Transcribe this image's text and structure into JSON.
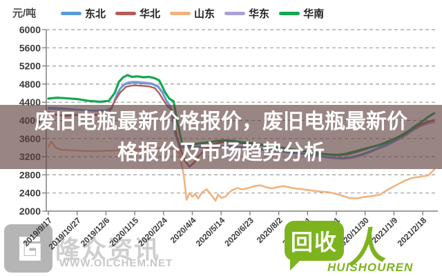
{
  "headline": {
    "line1": "废旧电瓶最新价格报价，废旧电瓶最新价",
    "line2": "格报价及市场趋势分析"
  },
  "unit_label": "元/吨",
  "watermarks": {
    "left": {
      "logo_name": "隆众资讯",
      "url_text": "WWW.OILCHEM.NET",
      "color": "#c6c6c6"
    },
    "right": {
      "bubble_text": "回收",
      "person_glyph": "人",
      "brand_text": "HUISHOUREN",
      "color": "#7db41e"
    }
  },
  "chart_data": {
    "type": "line",
    "title": "",
    "ylabel": "元/吨",
    "ylim": [
      2000,
      6000
    ],
    "yticks": [
      2000,
      2400,
      2800,
      3200,
      3600,
      4000,
      4400,
      4800,
      5200,
      5600,
      6000
    ],
    "grid": "dashed-horizontal",
    "legend_position": "top",
    "xticklabels": [
      "2019/9/17",
      "2019/10/27",
      "2019/12/6",
      "2020/1/15",
      "2020/2/24",
      "2020/4/4",
      "2020/5/14",
      "2020/6/23",
      "2020/8/2",
      "2020/9/11",
      "2020/10/21",
      "2020/11/30",
      "2021/1/9",
      "2021/2/18"
    ],
    "x_unit": "tick-index (0 = 2019/9/17, 13 = 2021/2/18)",
    "draw_order": [
      3,
      0,
      1,
      2,
      4
    ],
    "series": [
      {
        "name": "东北",
        "color": "#5b9bd5",
        "width": 2.4,
        "points": [
          [
            0,
            4280
          ],
          [
            0.4,
            4270
          ],
          [
            0.8,
            4250
          ],
          [
            1.2,
            4230
          ],
          [
            1.6,
            4210
          ],
          [
            2.0,
            4220
          ],
          [
            2.2,
            4260
          ],
          [
            2.35,
            4520
          ],
          [
            2.5,
            4700
          ],
          [
            2.65,
            4790
          ],
          [
            2.8,
            4820
          ],
          [
            3.0,
            4830
          ],
          [
            3.2,
            4820
          ],
          [
            3.4,
            4810
          ],
          [
            3.6,
            4800
          ],
          [
            3.8,
            4740
          ],
          [
            3.95,
            4620
          ],
          [
            4.1,
            4420
          ],
          [
            4.25,
            4280
          ],
          [
            4.4,
            3700
          ],
          [
            4.55,
            3430
          ],
          [
            4.8,
            3410
          ],
          [
            5.1,
            3420
          ],
          [
            5.4,
            3430
          ],
          [
            5.7,
            3420
          ],
          [
            6.0,
            3430
          ],
          [
            6.3,
            3440
          ],
          [
            6.6,
            3420
          ],
          [
            6.9,
            3400
          ],
          [
            7.2,
            3380
          ],
          [
            7.5,
            3360
          ],
          [
            7.8,
            3340
          ],
          [
            8.1,
            3320
          ],
          [
            8.4,
            3300
          ],
          [
            8.7,
            3280
          ],
          [
            9.0,
            3260
          ],
          [
            9.3,
            3230
          ],
          [
            9.6,
            3200
          ],
          [
            9.9,
            3180
          ],
          [
            10.2,
            3170
          ],
          [
            10.5,
            3190
          ],
          [
            10.8,
            3240
          ],
          [
            11.1,
            3300
          ],
          [
            11.4,
            3380
          ],
          [
            11.7,
            3460
          ],
          [
            12.0,
            3550
          ],
          [
            12.3,
            3660
          ],
          [
            12.6,
            3780
          ],
          [
            12.9,
            3900
          ],
          [
            13.15,
            3970
          ],
          [
            13.4,
            4000
          ]
        ]
      },
      {
        "name": "华北",
        "color": "#b85a56",
        "width": 2.4,
        "points": [
          [
            0,
            4180
          ],
          [
            0.3,
            4120
          ],
          [
            0.6,
            4100
          ],
          [
            1.0,
            4120
          ],
          [
            1.4,
            4130
          ],
          [
            1.8,
            4120
          ],
          [
            2.1,
            4160
          ],
          [
            2.3,
            4420
          ],
          [
            2.5,
            4620
          ],
          [
            2.7,
            4740
          ],
          [
            2.9,
            4770
          ],
          [
            3.1,
            4770
          ],
          [
            3.3,
            4760
          ],
          [
            3.5,
            4750
          ],
          [
            3.7,
            4710
          ],
          [
            3.85,
            4600
          ],
          [
            4.0,
            4440
          ],
          [
            4.15,
            4300
          ],
          [
            4.3,
            4230
          ],
          [
            4.45,
            3700
          ],
          [
            4.6,
            3350
          ],
          [
            4.75,
            3100
          ],
          [
            4.9,
            2980
          ],
          [
            5.05,
            3060
          ],
          [
            5.2,
            3200
          ],
          [
            5.45,
            3360
          ],
          [
            5.7,
            3470
          ],
          [
            5.95,
            3510
          ],
          [
            6.2,
            3530
          ],
          [
            6.5,
            3510
          ],
          [
            6.8,
            3490
          ],
          [
            7.1,
            3470
          ],
          [
            7.4,
            3450
          ],
          [
            7.7,
            3420
          ],
          [
            8.0,
            3390
          ],
          [
            8.3,
            3370
          ],
          [
            8.6,
            3340
          ],
          [
            8.9,
            3320
          ],
          [
            9.2,
            3290
          ],
          [
            9.5,
            3260
          ],
          [
            9.8,
            3240
          ],
          [
            10.1,
            3230
          ],
          [
            10.4,
            3250
          ],
          [
            10.7,
            3300
          ],
          [
            11.0,
            3360
          ],
          [
            11.3,
            3430
          ],
          [
            11.6,
            3490
          ],
          [
            11.9,
            3570
          ],
          [
            12.2,
            3660
          ],
          [
            12.5,
            3770
          ],
          [
            12.8,
            3870
          ],
          [
            13.1,
            3950
          ],
          [
            13.4,
            4010
          ]
        ]
      },
      {
        "name": "山东",
        "color": "#f2b27e",
        "width": 2.6,
        "points": [
          [
            0,
            3420
          ],
          [
            0.1,
            3530
          ],
          [
            0.25,
            3400
          ],
          [
            0.45,
            3350
          ],
          [
            0.8,
            3340
          ],
          [
            1.2,
            3330
          ],
          [
            1.6,
            3320
          ],
          [
            2.0,
            3330
          ],
          [
            2.4,
            3340
          ],
          [
            2.8,
            3350
          ],
          [
            3.2,
            3360
          ],
          [
            3.6,
            3380
          ],
          [
            4.0,
            3400
          ],
          [
            4.2,
            3390
          ],
          [
            4.4,
            3360
          ],
          [
            4.55,
            3280
          ],
          [
            4.7,
            2800
          ],
          [
            4.8,
            2250
          ],
          [
            4.9,
            2400
          ],
          [
            5.0,
            2320
          ],
          [
            5.1,
            2380
          ],
          [
            5.2,
            2280
          ],
          [
            5.35,
            2420
          ],
          [
            5.5,
            2480
          ],
          [
            5.6,
            2400
          ],
          [
            5.7,
            2320
          ],
          [
            5.8,
            2230
          ],
          [
            5.9,
            2370
          ],
          [
            6.0,
            2290
          ],
          [
            6.15,
            2320
          ],
          [
            6.35,
            2450
          ],
          [
            6.55,
            2510
          ],
          [
            6.75,
            2480
          ],
          [
            6.95,
            2510
          ],
          [
            7.15,
            2550
          ],
          [
            7.35,
            2570
          ],
          [
            7.55,
            2530
          ],
          [
            7.75,
            2500
          ],
          [
            7.95,
            2530
          ],
          [
            8.15,
            2550
          ],
          [
            8.35,
            2530
          ],
          [
            8.55,
            2500
          ],
          [
            8.75,
            2490
          ],
          [
            8.95,
            2470
          ],
          [
            9.2,
            2450
          ],
          [
            9.45,
            2430
          ],
          [
            9.7,
            2420
          ],
          [
            9.95,
            2390
          ],
          [
            10.2,
            2340
          ],
          [
            10.45,
            2290
          ],
          [
            10.7,
            2280
          ],
          [
            10.95,
            2310
          ],
          [
            11.2,
            2330
          ],
          [
            11.5,
            2360
          ],
          [
            11.8,
            2480
          ],
          [
            12.1,
            2580
          ],
          [
            12.4,
            2680
          ],
          [
            12.7,
            2740
          ],
          [
            12.95,
            2760
          ],
          [
            13.2,
            2790
          ],
          [
            13.4,
            2920
          ]
        ]
      },
      {
        "name": "华东",
        "color": "#aca0d8",
        "width": 2.2,
        "points": [
          [
            0,
            4250
          ],
          [
            0.5,
            4240
          ],
          [
            1.0,
            4230
          ],
          [
            1.5,
            4220
          ],
          [
            2.0,
            4230
          ],
          [
            2.2,
            4280
          ],
          [
            2.4,
            4620
          ],
          [
            2.6,
            4800
          ],
          [
            2.8,
            4850
          ],
          [
            3.0,
            4860
          ],
          [
            3.2,
            4850
          ],
          [
            3.4,
            4840
          ],
          [
            3.6,
            4820
          ],
          [
            3.8,
            4770
          ],
          [
            3.95,
            4650
          ],
          [
            4.1,
            4450
          ],
          [
            4.25,
            4320
          ],
          [
            4.4,
            3750
          ],
          [
            4.55,
            3400
          ],
          [
            4.85,
            3390
          ],
          [
            5.15,
            3400
          ],
          [
            5.45,
            3410
          ],
          [
            5.75,
            3400
          ],
          [
            6.05,
            3410
          ],
          [
            6.35,
            3420
          ],
          [
            6.65,
            3400
          ],
          [
            6.95,
            3380
          ],
          [
            7.25,
            3360
          ],
          [
            7.55,
            3340
          ],
          [
            7.85,
            3320
          ],
          [
            8.15,
            3300
          ],
          [
            8.45,
            3280
          ],
          [
            8.75,
            3260
          ],
          [
            9.05,
            3240
          ],
          [
            9.35,
            3210
          ],
          [
            9.65,
            3180
          ],
          [
            9.95,
            3160
          ],
          [
            10.25,
            3150
          ],
          [
            10.55,
            3170
          ],
          [
            10.85,
            3220
          ],
          [
            11.15,
            3290
          ],
          [
            11.45,
            3370
          ],
          [
            11.75,
            3440
          ],
          [
            12.05,
            3540
          ],
          [
            12.35,
            3640
          ],
          [
            12.65,
            3770
          ],
          [
            12.95,
            3880
          ],
          [
            13.2,
            3930
          ],
          [
            13.4,
            3960
          ]
        ]
      },
      {
        "name": "华南",
        "color": "#12a84f",
        "width": 3.2,
        "points": [
          [
            0,
            4480
          ],
          [
            0.3,
            4500
          ],
          [
            0.6,
            4490
          ],
          [
            1.0,
            4470
          ],
          [
            1.4,
            4430
          ],
          [
            1.8,
            4410
          ],
          [
            2.1,
            4430
          ],
          [
            2.3,
            4600
          ],
          [
            2.45,
            4850
          ],
          [
            2.6,
            4950
          ],
          [
            2.75,
            5000
          ],
          [
            2.9,
            4960
          ],
          [
            3.1,
            4970
          ],
          [
            3.3,
            4950
          ],
          [
            3.5,
            4960
          ],
          [
            3.7,
            4930
          ],
          [
            3.85,
            4880
          ],
          [
            3.95,
            4760
          ],
          [
            4.05,
            4620
          ],
          [
            4.2,
            4480
          ],
          [
            4.35,
            4420
          ],
          [
            4.5,
            3900
          ],
          [
            4.65,
            3480
          ],
          [
            4.9,
            3460
          ],
          [
            5.2,
            3490
          ],
          [
            5.5,
            3510
          ],
          [
            5.8,
            3540
          ],
          [
            6.1,
            3560
          ],
          [
            6.4,
            3550
          ],
          [
            6.7,
            3520
          ],
          [
            7.0,
            3500
          ],
          [
            7.3,
            3480
          ],
          [
            7.6,
            3440
          ],
          [
            7.9,
            3410
          ],
          [
            8.2,
            3390
          ],
          [
            8.5,
            3360
          ],
          [
            8.8,
            3330
          ],
          [
            9.1,
            3300
          ],
          [
            9.4,
            3270
          ],
          [
            9.7,
            3250
          ],
          [
            10.0,
            3240
          ],
          [
            10.3,
            3260
          ],
          [
            10.6,
            3310
          ],
          [
            10.9,
            3360
          ],
          [
            11.2,
            3410
          ],
          [
            11.5,
            3460
          ],
          [
            11.8,
            3530
          ],
          [
            12.1,
            3610
          ],
          [
            12.4,
            3710
          ],
          [
            12.7,
            3860
          ],
          [
            12.95,
            3960
          ],
          [
            13.2,
            4080
          ],
          [
            13.4,
            4160
          ]
        ]
      }
    ]
  }
}
